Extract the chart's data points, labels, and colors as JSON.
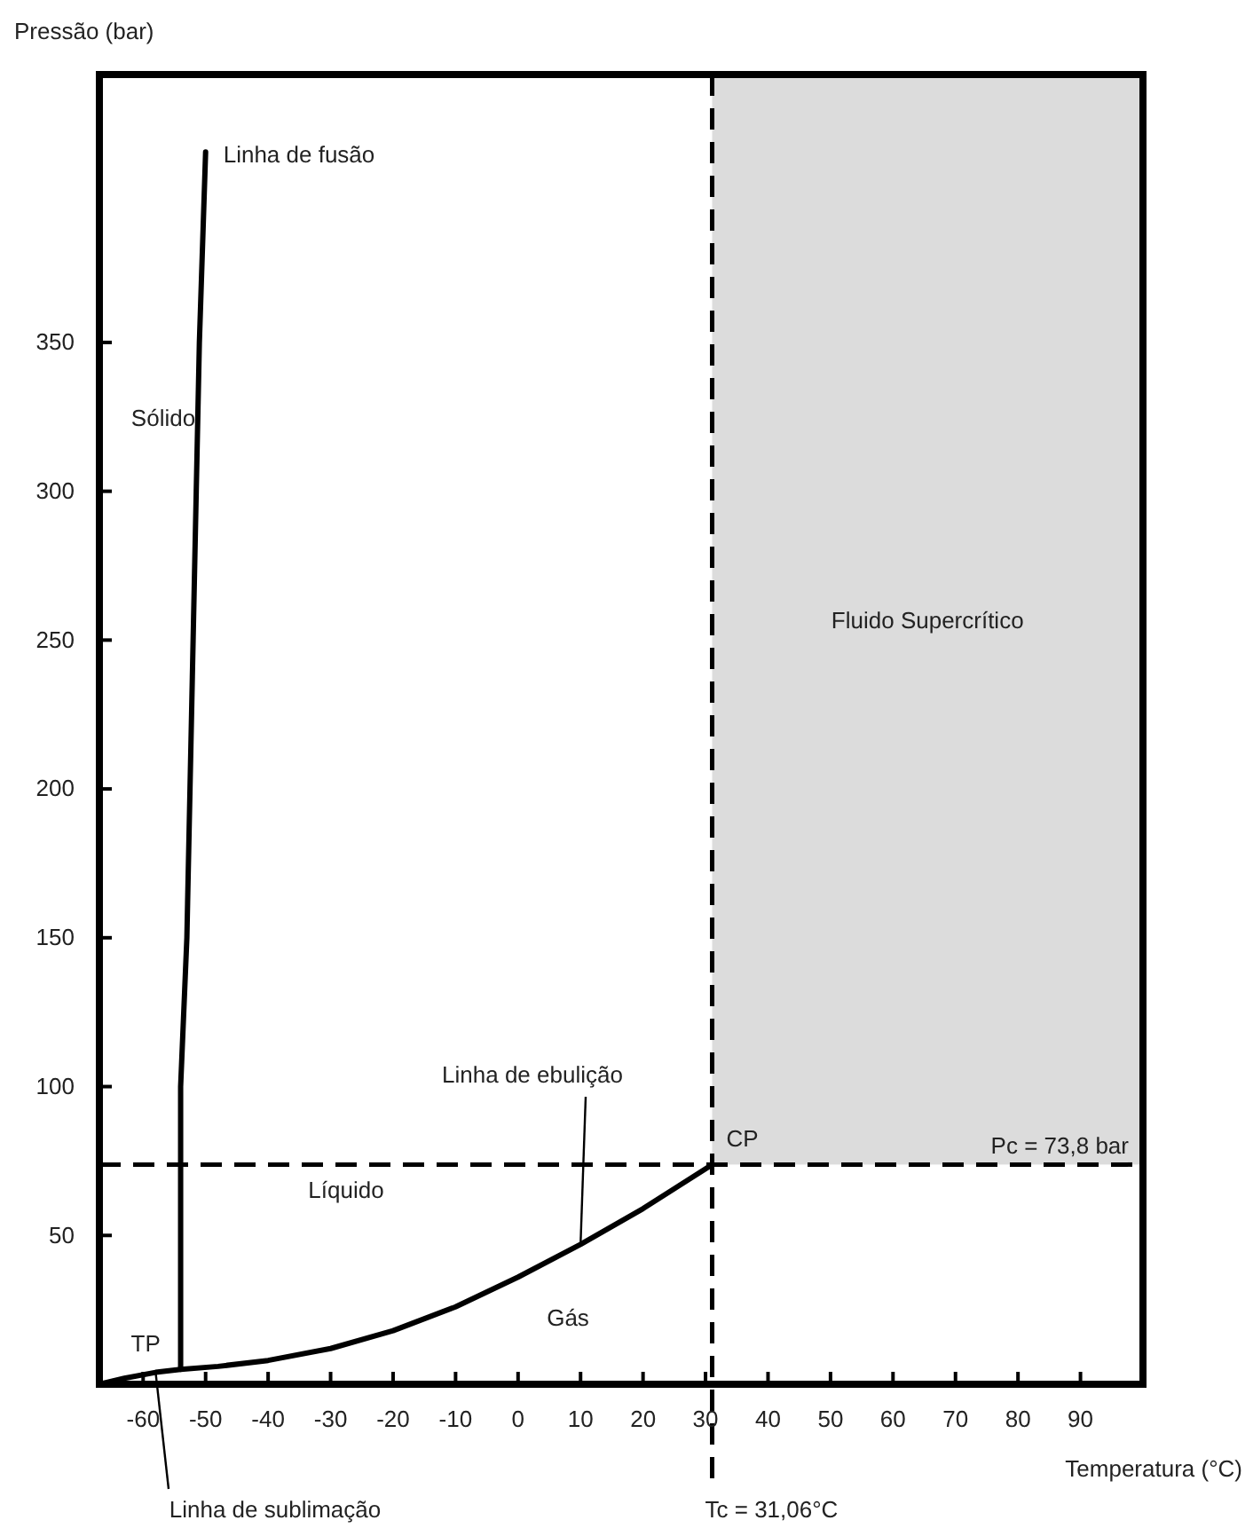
{
  "chart_data": {
    "type": "line",
    "xlabel": "Temperatura (°C)",
    "ylabel": "Pressão (bar)",
    "xlim": [
      -67,
      100
    ],
    "xticks": [
      -60,
      -50,
      -40,
      -30,
      -20,
      -10,
      0,
      10,
      20,
      30,
      40,
      50,
      60,
      70,
      80,
      90
    ],
    "ylim": [
      0,
      440
    ],
    "yticks": [
      50,
      100,
      150,
      200,
      250,
      300,
      350
    ],
    "grid": false,
    "marker": "none",
    "line_style": "solid",
    "series": [
      {
        "color": "#000000",
        "x": [
          -54,
          -54,
          -53,
          -52.5,
          -52,
          -51.5,
          -51,
          -50
        ],
        "values": [
          5,
          100,
          150,
          200,
          250,
          300,
          350,
          414
        ]
      },
      {
        "color": "#000000",
        "x": [
          -67,
          -63,
          -58,
          -54,
          -48,
          -40,
          -30,
          -20,
          -10,
          0,
          10,
          20,
          31.06
        ],
        "values": [
          0,
          2,
          4,
          5,
          6,
          8,
          12,
          18,
          26,
          36,
          47,
          59,
          73.8
        ]
      }
    ],
    "ref_lines": [
      {
        "axis": "x",
        "value": 31.06,
        "label": "Tc = 31,06°C",
        "color": "#000000",
        "line_style": "dashed"
      },
      {
        "axis": "y",
        "value": 73.8,
        "label": "Pc = 73,8 bar",
        "color": "#000000",
        "line_style": "dashed"
      }
    ],
    "bands": [
      {
        "axis": "x",
        "from": 31.06,
        "to": 100,
        "label": "Fluido Supercrítico",
        "color": "#dcdcdc"
      }
    ],
    "annotations": [
      {
        "text": "Linha de fusão",
        "x": -50,
        "y": 414
      },
      {
        "text": "Linha de ebulição",
        "x": 10,
        "y": 47
      },
      {
        "text": "Linha de sublimação",
        "x": -58,
        "y": 4
      },
      {
        "text": "TP",
        "x": -54,
        "y": 5
      },
      {
        "text": "CP",
        "x": 31.06,
        "y": 73.8
      },
      "Sólido",
      "Líquido",
      "Gás"
    ]
  }
}
